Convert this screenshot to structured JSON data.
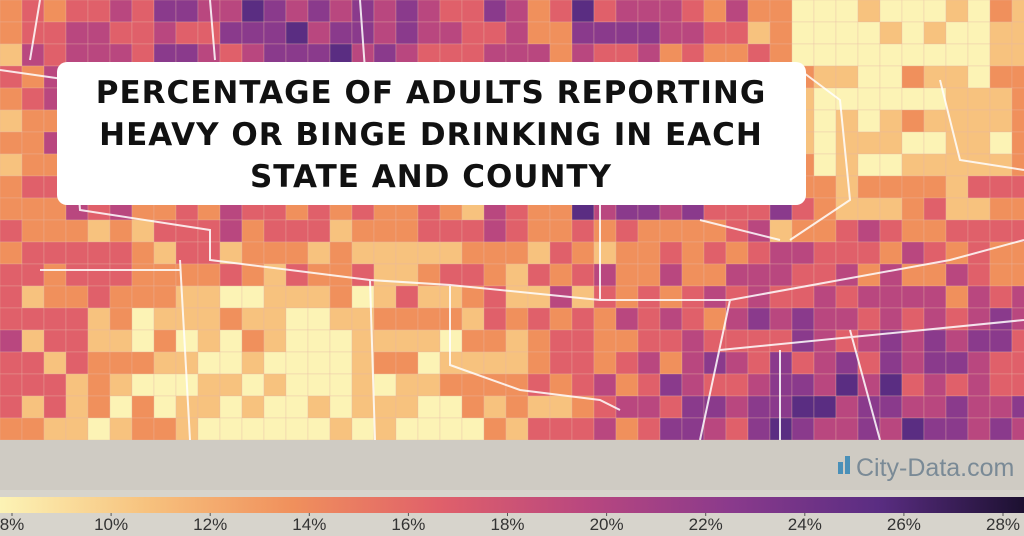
{
  "title_lines": [
    "PERCENTAGE OF ADULTS REPORTING",
    "HEAVY OR BINGE DRINKING IN EACH",
    "STATE AND COUNTY"
  ],
  "watermark": "City-Data.com",
  "legend": {
    "lim": [
      8,
      28
    ],
    "colors": [
      "#fcf3b5",
      "#f7c27e",
      "#f0905c",
      "#e0606a",
      "#b9477f",
      "#8a3a8c",
      "#5a2d82",
      "#1c1030"
    ],
    "ticks": [
      {
        "value": 8,
        "label": "8%"
      },
      {
        "value": 10,
        "label": "10%"
      },
      {
        "value": 12,
        "label": "12%"
      },
      {
        "value": 14,
        "label": "14%"
      },
      {
        "value": 16,
        "label": "16%"
      },
      {
        "value": 18,
        "label": "18%"
      },
      {
        "value": 20,
        "label": "20%"
      },
      {
        "value": 22,
        "label": "22%"
      },
      {
        "value": 24,
        "label": "24%"
      },
      {
        "value": 26,
        "label": "26%"
      },
      {
        "value": 28,
        "label": "28%"
      }
    ]
  }
}
